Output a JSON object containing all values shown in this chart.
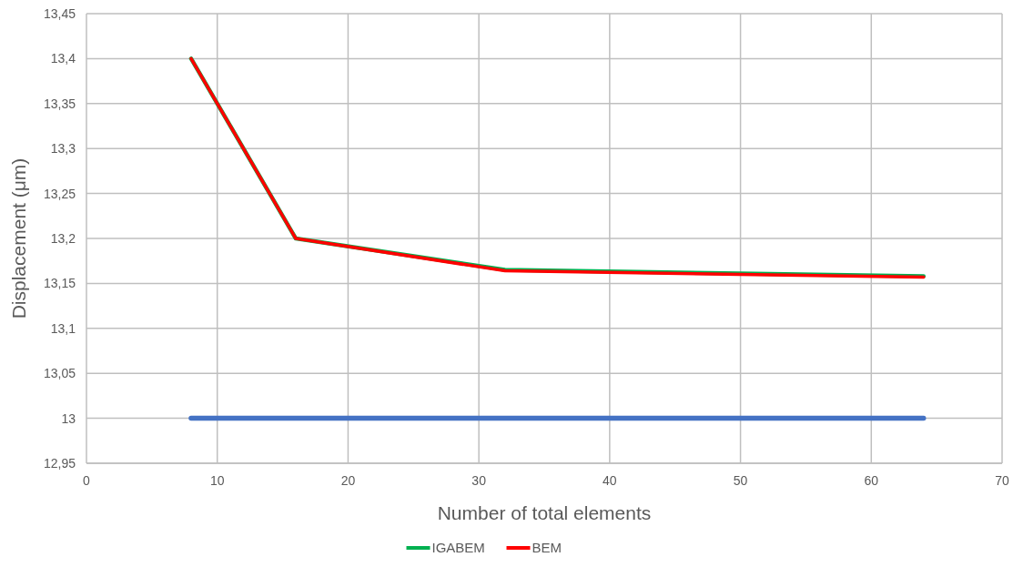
{
  "chart_data": {
    "type": "line",
    "xlabel": "Number of total elements",
    "ylabel": "Displacement (μm)",
    "x": [
      8,
      16,
      32,
      64
    ],
    "series": [
      {
        "color": "#4472c4",
        "values": [
          13,
          13,
          13,
          13
        ]
      },
      {
        "name": "IGABEM",
        "color": "#00b050",
        "values": [
          13.4,
          13.2,
          13.165,
          13.158
        ]
      },
      {
        "name": "BEM",
        "color": "#ff0000",
        "values": [
          13.4,
          13.2,
          13.164,
          13.157
        ]
      }
    ],
    "xlim": [
      0,
      70
    ],
    "xticks": [
      0,
      10,
      20,
      30,
      40,
      50,
      60,
      70
    ],
    "ylim": [
      12.95,
      13.45
    ],
    "yticks": [
      {
        "value": 12.95,
        "label": "12,95"
      },
      {
        "value": 13,
        "label": "13"
      },
      {
        "value": 13.05,
        "label": "13,05"
      },
      {
        "value": 13.1,
        "label": "13,1"
      },
      {
        "value": 13.15,
        "label": "13,15"
      },
      {
        "value": 13.2,
        "label": "13,2"
      },
      {
        "value": 13.25,
        "label": "13,25"
      },
      {
        "value": 13.3,
        "label": "13,3"
      },
      {
        "value": 13.35,
        "label": "13,35"
      },
      {
        "value": 13.4,
        "label": "13,4"
      },
      {
        "value": 13.45,
        "label": "13,45"
      }
    ],
    "grid": true,
    "legend": "bottom",
    "marker": "none",
    "line_style": "solid"
  }
}
